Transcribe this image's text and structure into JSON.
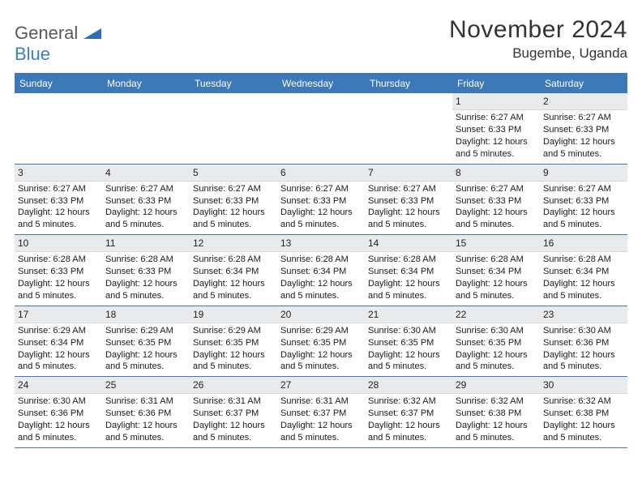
{
  "logo": {
    "general": "General",
    "blue": "Blue"
  },
  "title": {
    "month": "November 2024",
    "location": "Bugembe, Uganda"
  },
  "colors": {
    "header_bar": "#3d79b8",
    "daynum_bg": "#e9eaec",
    "text": "#1a1a1a",
    "logo_gray": "#58595b",
    "logo_blue": "#3b7fc4"
  },
  "weekdays": [
    "Sunday",
    "Monday",
    "Tuesday",
    "Wednesday",
    "Thursday",
    "Friday",
    "Saturday"
  ],
  "weeks": [
    [
      {
        "n": "",
        "empty": true
      },
      {
        "n": "",
        "empty": true
      },
      {
        "n": "",
        "empty": true
      },
      {
        "n": "",
        "empty": true
      },
      {
        "n": "",
        "empty": true
      },
      {
        "n": "1",
        "sr": "Sunrise: 6:27 AM",
        "ss": "Sunset: 6:33 PM",
        "dl1": "Daylight: 12 hours",
        "dl2": "and 5 minutes."
      },
      {
        "n": "2",
        "sr": "Sunrise: 6:27 AM",
        "ss": "Sunset: 6:33 PM",
        "dl1": "Daylight: 12 hours",
        "dl2": "and 5 minutes."
      }
    ],
    [
      {
        "n": "3",
        "sr": "Sunrise: 6:27 AM",
        "ss": "Sunset: 6:33 PM",
        "dl1": "Daylight: 12 hours",
        "dl2": "and 5 minutes."
      },
      {
        "n": "4",
        "sr": "Sunrise: 6:27 AM",
        "ss": "Sunset: 6:33 PM",
        "dl1": "Daylight: 12 hours",
        "dl2": "and 5 minutes."
      },
      {
        "n": "5",
        "sr": "Sunrise: 6:27 AM",
        "ss": "Sunset: 6:33 PM",
        "dl1": "Daylight: 12 hours",
        "dl2": "and 5 minutes."
      },
      {
        "n": "6",
        "sr": "Sunrise: 6:27 AM",
        "ss": "Sunset: 6:33 PM",
        "dl1": "Daylight: 12 hours",
        "dl2": "and 5 minutes."
      },
      {
        "n": "7",
        "sr": "Sunrise: 6:27 AM",
        "ss": "Sunset: 6:33 PM",
        "dl1": "Daylight: 12 hours",
        "dl2": "and 5 minutes."
      },
      {
        "n": "8",
        "sr": "Sunrise: 6:27 AM",
        "ss": "Sunset: 6:33 PM",
        "dl1": "Daylight: 12 hours",
        "dl2": "and 5 minutes."
      },
      {
        "n": "9",
        "sr": "Sunrise: 6:27 AM",
        "ss": "Sunset: 6:33 PM",
        "dl1": "Daylight: 12 hours",
        "dl2": "and 5 minutes."
      }
    ],
    [
      {
        "n": "10",
        "sr": "Sunrise: 6:28 AM",
        "ss": "Sunset: 6:33 PM",
        "dl1": "Daylight: 12 hours",
        "dl2": "and 5 minutes."
      },
      {
        "n": "11",
        "sr": "Sunrise: 6:28 AM",
        "ss": "Sunset: 6:33 PM",
        "dl1": "Daylight: 12 hours",
        "dl2": "and 5 minutes."
      },
      {
        "n": "12",
        "sr": "Sunrise: 6:28 AM",
        "ss": "Sunset: 6:34 PM",
        "dl1": "Daylight: 12 hours",
        "dl2": "and 5 minutes."
      },
      {
        "n": "13",
        "sr": "Sunrise: 6:28 AM",
        "ss": "Sunset: 6:34 PM",
        "dl1": "Daylight: 12 hours",
        "dl2": "and 5 minutes."
      },
      {
        "n": "14",
        "sr": "Sunrise: 6:28 AM",
        "ss": "Sunset: 6:34 PM",
        "dl1": "Daylight: 12 hours",
        "dl2": "and 5 minutes."
      },
      {
        "n": "15",
        "sr": "Sunrise: 6:28 AM",
        "ss": "Sunset: 6:34 PM",
        "dl1": "Daylight: 12 hours",
        "dl2": "and 5 minutes."
      },
      {
        "n": "16",
        "sr": "Sunrise: 6:28 AM",
        "ss": "Sunset: 6:34 PM",
        "dl1": "Daylight: 12 hours",
        "dl2": "and 5 minutes."
      }
    ],
    [
      {
        "n": "17",
        "sr": "Sunrise: 6:29 AM",
        "ss": "Sunset: 6:34 PM",
        "dl1": "Daylight: 12 hours",
        "dl2": "and 5 minutes."
      },
      {
        "n": "18",
        "sr": "Sunrise: 6:29 AM",
        "ss": "Sunset: 6:35 PM",
        "dl1": "Daylight: 12 hours",
        "dl2": "and 5 minutes."
      },
      {
        "n": "19",
        "sr": "Sunrise: 6:29 AM",
        "ss": "Sunset: 6:35 PM",
        "dl1": "Daylight: 12 hours",
        "dl2": "and 5 minutes."
      },
      {
        "n": "20",
        "sr": "Sunrise: 6:29 AM",
        "ss": "Sunset: 6:35 PM",
        "dl1": "Daylight: 12 hours",
        "dl2": "and 5 minutes."
      },
      {
        "n": "21",
        "sr": "Sunrise: 6:30 AM",
        "ss": "Sunset: 6:35 PM",
        "dl1": "Daylight: 12 hours",
        "dl2": "and 5 minutes."
      },
      {
        "n": "22",
        "sr": "Sunrise: 6:30 AM",
        "ss": "Sunset: 6:35 PM",
        "dl1": "Daylight: 12 hours",
        "dl2": "and 5 minutes."
      },
      {
        "n": "23",
        "sr": "Sunrise: 6:30 AM",
        "ss": "Sunset: 6:36 PM",
        "dl1": "Daylight: 12 hours",
        "dl2": "and 5 minutes."
      }
    ],
    [
      {
        "n": "24",
        "sr": "Sunrise: 6:30 AM",
        "ss": "Sunset: 6:36 PM",
        "dl1": "Daylight: 12 hours",
        "dl2": "and 5 minutes."
      },
      {
        "n": "25",
        "sr": "Sunrise: 6:31 AM",
        "ss": "Sunset: 6:36 PM",
        "dl1": "Daylight: 12 hours",
        "dl2": "and 5 minutes."
      },
      {
        "n": "26",
        "sr": "Sunrise: 6:31 AM",
        "ss": "Sunset: 6:37 PM",
        "dl1": "Daylight: 12 hours",
        "dl2": "and 5 minutes."
      },
      {
        "n": "27",
        "sr": "Sunrise: 6:31 AM",
        "ss": "Sunset: 6:37 PM",
        "dl1": "Daylight: 12 hours",
        "dl2": "and 5 minutes."
      },
      {
        "n": "28",
        "sr": "Sunrise: 6:32 AM",
        "ss": "Sunset: 6:37 PM",
        "dl1": "Daylight: 12 hours",
        "dl2": "and 5 minutes."
      },
      {
        "n": "29",
        "sr": "Sunrise: 6:32 AM",
        "ss": "Sunset: 6:38 PM",
        "dl1": "Daylight: 12 hours",
        "dl2": "and 5 minutes."
      },
      {
        "n": "30",
        "sr": "Sunrise: 6:32 AM",
        "ss": "Sunset: 6:38 PM",
        "dl1": "Daylight: 12 hours",
        "dl2": "and 5 minutes."
      }
    ]
  ]
}
